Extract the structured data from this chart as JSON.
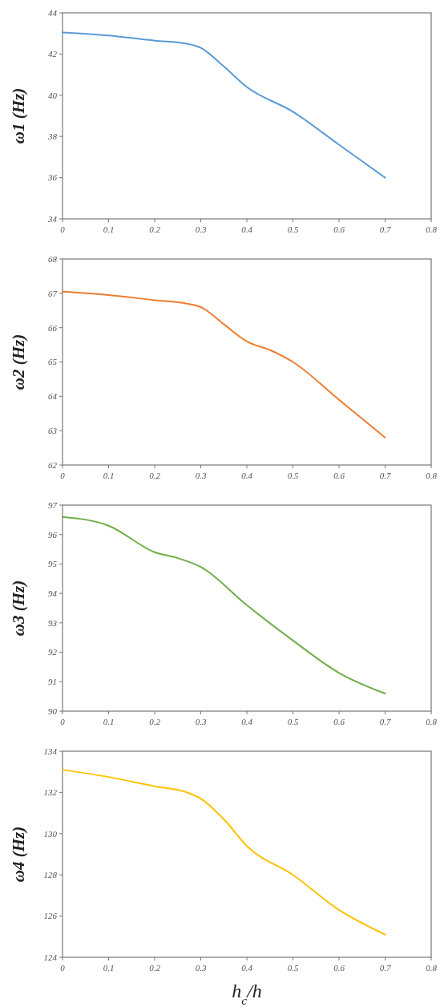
{
  "chart_data": [
    {
      "type": "line",
      "ylabel": "ω1 (Hz)",
      "x": [
        0,
        0.1,
        0.2,
        0.27,
        0.3,
        0.35,
        0.4,
        0.5,
        0.6,
        0.7
      ],
      "series": [
        {
          "color": "#5b9bd5",
          "values": [
            43.05,
            42.9,
            42.65,
            42.5,
            42.3,
            41.4,
            40.4,
            39.2,
            37.6,
            36.0
          ]
        }
      ],
      "xlim": [
        0,
        0.8
      ],
      "xticks": [
        0,
        0.1,
        0.2,
        0.3,
        0.4,
        0.5,
        0.6,
        0.7,
        0.8
      ],
      "ylim": [
        34,
        44
      ],
      "yticks": [
        34,
        36,
        38,
        40,
        42,
        44
      ]
    },
    {
      "type": "line",
      "ylabel": "ω2 (Hz)",
      "x": [
        0,
        0.1,
        0.2,
        0.27,
        0.3,
        0.35,
        0.4,
        0.45,
        0.5,
        0.6,
        0.7
      ],
      "series": [
        {
          "color": "#ed7d31",
          "values": [
            67.05,
            66.95,
            66.8,
            66.7,
            66.6,
            66.1,
            65.6,
            65.35,
            65.0,
            63.9,
            62.8
          ]
        }
      ],
      "xlim": [
        0,
        0.8
      ],
      "xticks": [
        0,
        0.1,
        0.2,
        0.3,
        0.4,
        0.5,
        0.6,
        0.7,
        0.8
      ],
      "ylim": [
        62,
        68
      ],
      "yticks": [
        62,
        63,
        64,
        65,
        66,
        67,
        68
      ]
    },
    {
      "type": "line",
      "ylabel": "ω3 (Hz)",
      "x": [
        0,
        0.1,
        0.2,
        0.25,
        0.3,
        0.4,
        0.5,
        0.6,
        0.7
      ],
      "series": [
        {
          "color": "#70ad47",
          "values": [
            96.6,
            96.3,
            95.4,
            95.2,
            94.9,
            93.6,
            92.4,
            91.3,
            90.6
          ]
        }
      ],
      "xlim": [
        0,
        0.8
      ],
      "xticks": [
        0,
        0.1,
        0.2,
        0.3,
        0.4,
        0.5,
        0.6,
        0.7,
        0.8
      ],
      "ylim": [
        90,
        97
      ],
      "yticks": [
        90,
        91,
        92,
        93,
        94,
        95,
        96,
        97
      ]
    },
    {
      "type": "line",
      "ylabel": "ω4 (Hz)",
      "xlabel": "h$_{c}$/h",
      "x": [
        0,
        0.1,
        0.2,
        0.27,
        0.3,
        0.35,
        0.4,
        0.5,
        0.6,
        0.7
      ],
      "series": [
        {
          "color": "#ffc000",
          "values": [
            133.1,
            132.75,
            132.3,
            132.0,
            131.7,
            130.7,
            129.4,
            128.0,
            126.3,
            125.1
          ]
        }
      ],
      "xlim": [
        0,
        0.8
      ],
      "xticks": [
        0,
        0.1,
        0.2,
        0.3,
        0.4,
        0.5,
        0.6,
        0.7,
        0.8
      ],
      "ylim": [
        124,
        134
      ],
      "yticks": [
        124,
        126,
        128,
        130,
        132,
        134
      ]
    }
  ]
}
